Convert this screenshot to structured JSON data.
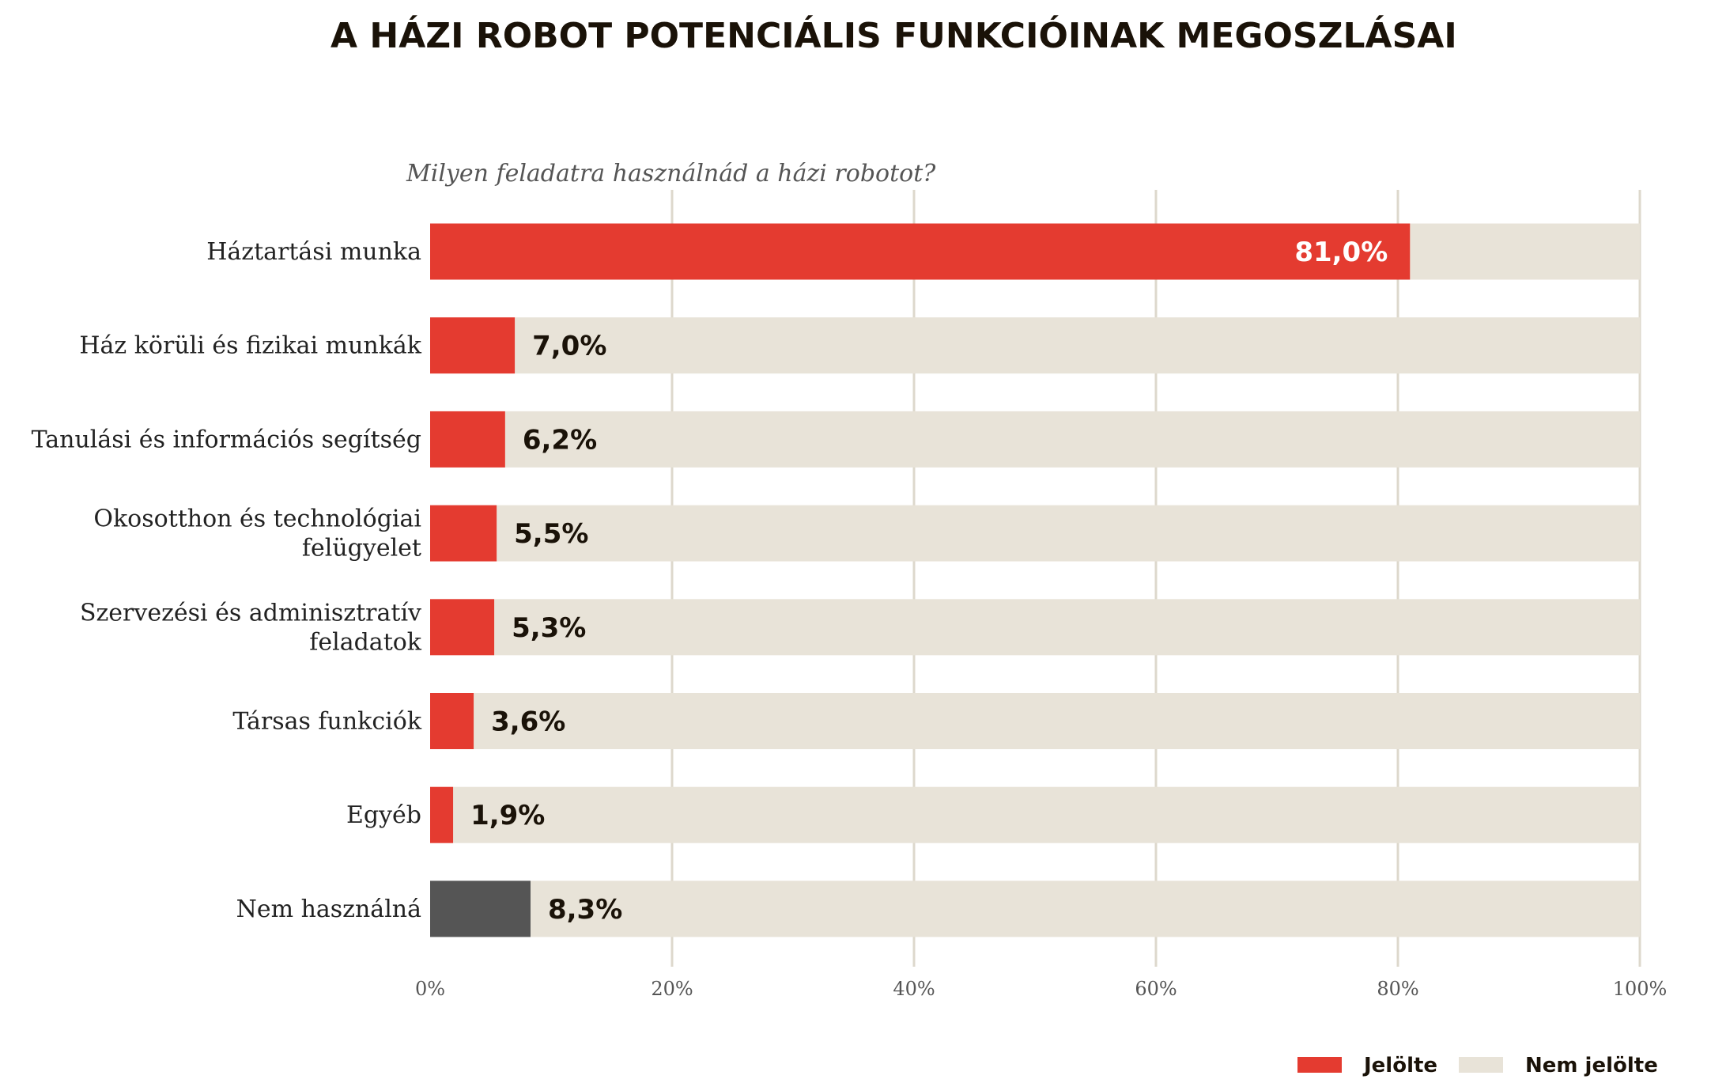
{
  "chart_data": {
    "type": "bar",
    "orientation": "horizontal",
    "stacked": true,
    "title": "A HÁZI ROBOT POTENCIÁLIS FUNKCIÓINAK MEGOSZLÁSAI",
    "subtitle": "Milyen feladatra használnád a házi robotot?",
    "categories": [
      [
        "Háztartási munka"
      ],
      [
        "Ház körüli és fizikai munkák"
      ],
      [
        "Tanulási és információs segítség"
      ],
      [
        "Okosotthon és technológiai",
        "felügyelet"
      ],
      [
        "Szervezési és adminisztratív",
        "feladatok"
      ],
      [
        "Társas funkciók"
      ],
      [
        "Egyéb"
      ],
      [
        "Nem használná"
      ]
    ],
    "series": [
      {
        "name": "Jelölte",
        "values": [
          81.0,
          7.0,
          6.2,
          5.5,
          5.3,
          3.6,
          1.9,
          8.3
        ],
        "color": "#e43b30"
      },
      {
        "name": "Nem jelölte",
        "values": [
          19.0,
          93.0,
          93.8,
          94.5,
          94.7,
          96.4,
          98.1,
          91.7
        ],
        "color": "#e8e3d8"
      }
    ],
    "value_labels": [
      "81,0%",
      "7,0%",
      "6,2%",
      "5,5%",
      "5,3%",
      "3,6%",
      "1,9%",
      "8,3%"
    ],
    "highlight_color_last": "#555555",
    "xlim": [
      0,
      100
    ],
    "xticks": [
      0,
      20,
      40,
      60,
      80,
      100
    ],
    "xtick_labels": [
      "0%",
      "20%",
      "40%",
      "60%",
      "80%",
      "100%"
    ],
    "grid": true,
    "gridline_color": "#ddd8cc",
    "legend_position": "bottom-right"
  }
}
